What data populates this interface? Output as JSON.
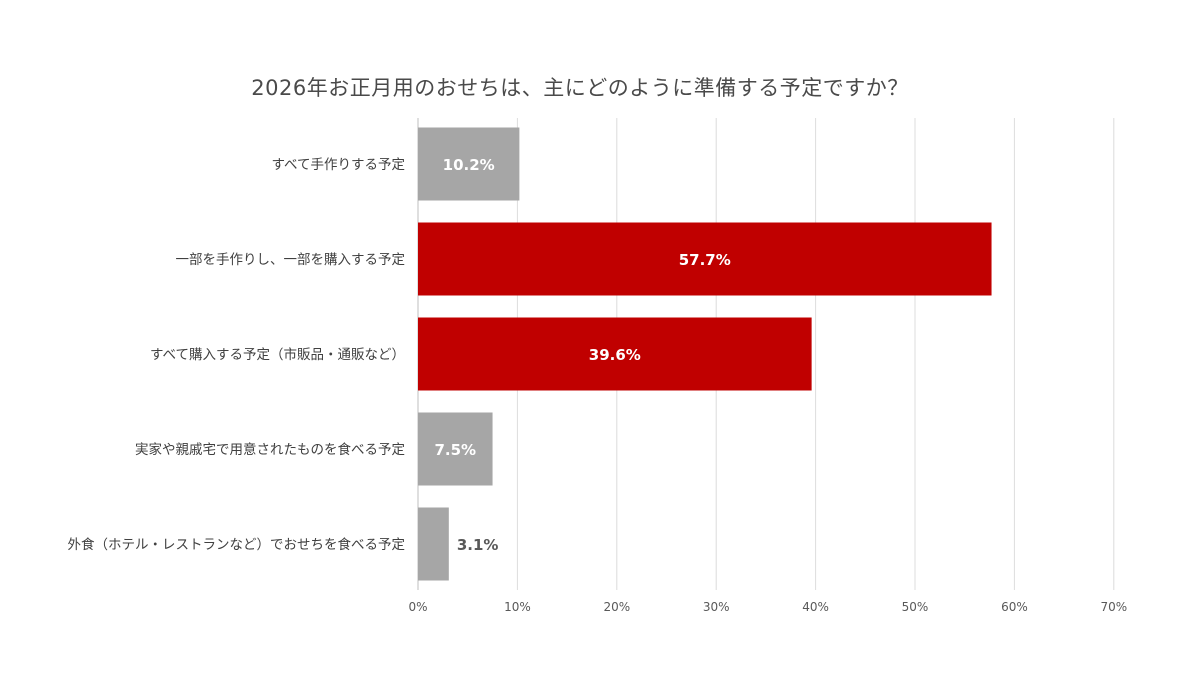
{
  "chart_data": {
    "type": "bar",
    "orientation": "horizontal",
    "title": "2026年お正月用のおせちは、主にどのように準備する予定ですか？",
    "categories": [
      "すべて手作りする予定",
      "一部を手作りし、一部を購入する予定",
      "すべて購入する予定（市販品・通販など）",
      "実家や親戚宅で用意されたものを食べる予定",
      "外食（ホテル・レストランなど）でおせちを食べる予定"
    ],
    "values": [
      10.2,
      57.7,
      39.6,
      7.5,
      3.1
    ],
    "value_labels": [
      "10.2%",
      "57.7%",
      "39.6%",
      "7.5%",
      "3.1%"
    ],
    "bar_colors": [
      "#a6a6a6",
      "#c00000",
      "#c00000",
      "#a6a6a6",
      "#a6a6a6"
    ],
    "xlim": [
      0,
      70
    ],
    "x_ticks": [
      0,
      10,
      20,
      30,
      40,
      50,
      60,
      70
    ],
    "x_tick_labels": [
      "0%",
      "10%",
      "20%",
      "30%",
      "40%",
      "50%",
      "60%",
      "70%"
    ],
    "grid": true,
    "xlabel": "",
    "ylabel": ""
  }
}
